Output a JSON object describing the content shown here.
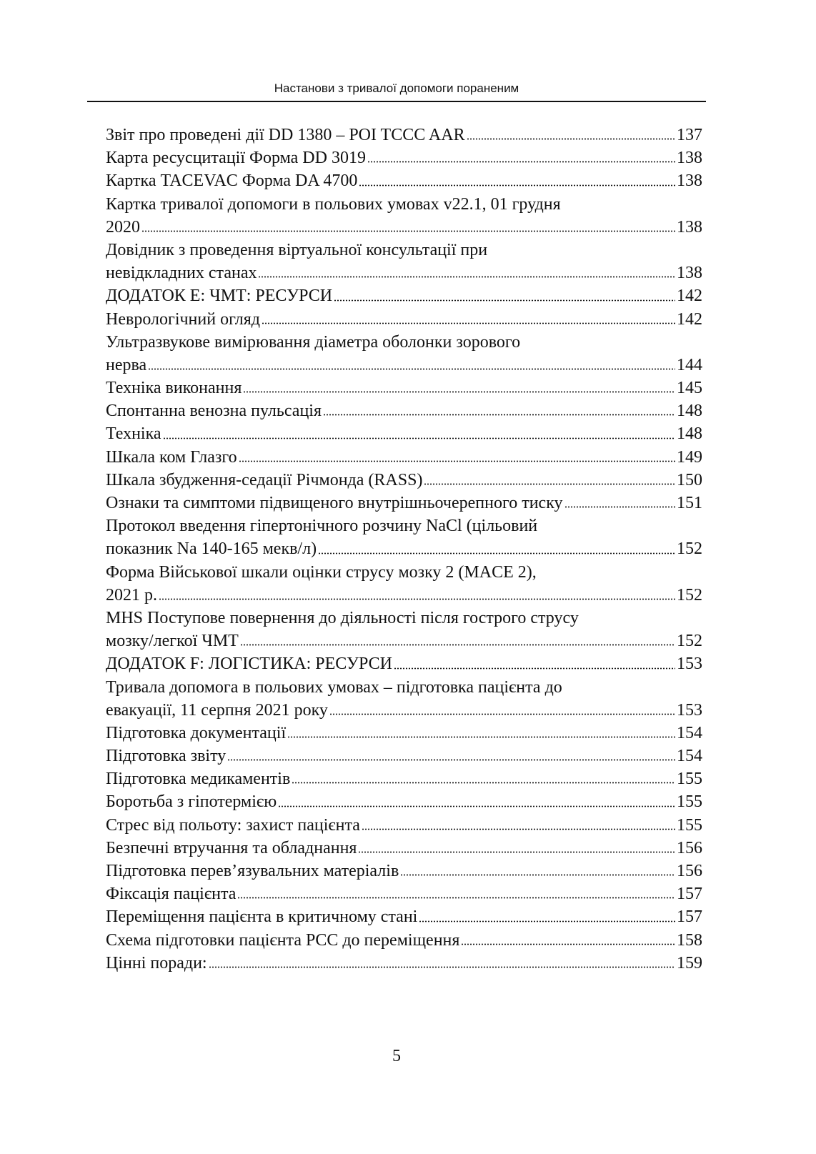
{
  "header": {
    "title": "Настанови з тривалої допомоги пораненим"
  },
  "toc": [
    {
      "lines": [
        "Звіт про проведені дії DD 1380 – POI TCCC AAR"
      ],
      "page": 137
    },
    {
      "lines": [
        "Карта ресусцитації Форма DD 3019"
      ],
      "page": 138
    },
    {
      "lines": [
        "Картка TACEVAC Форма DA 4700"
      ],
      "page": 138
    },
    {
      "lines": [
        "Картка тривалої допомоги в польових умовах v22.1, 01 грудня",
        "2020"
      ],
      "page": 138
    },
    {
      "lines": [
        "Довідник з проведення віртуальної консультації при",
        "невідкладних станах"
      ],
      "page": 138
    },
    {
      "lines": [
        "ДОДАТОК E:  ЧМТ: РЕСУРСИ"
      ],
      "page": 142
    },
    {
      "lines": [
        "Неврологічний огляд"
      ],
      "page": 142
    },
    {
      "lines": [
        "Ультразвукове вимірювання діаметра оболонки зорового",
        "нерва"
      ],
      "page": 144
    },
    {
      "lines": [
        "Техніка виконання"
      ],
      "page": 145
    },
    {
      "lines": [
        "Спонтанна венозна пульсація"
      ],
      "page": 148
    },
    {
      "lines": [
        "Техніка"
      ],
      "page": 148
    },
    {
      "lines": [
        "Шкала ком Глазго"
      ],
      "page": 149
    },
    {
      "lines": [
        "Шкала збудження-седації Річмонда (RASS)"
      ],
      "page": 150
    },
    {
      "lines": [
        "Ознаки та симптоми підвищеного внутрішньочерепного тиску"
      ],
      "page": 151
    },
    {
      "lines": [
        "Протокол введення гіпертонічного розчину NaCl (цільовий",
        "показник Na 140-165 мекв/л)"
      ],
      "page": 152
    },
    {
      "lines": [
        "Форма Військової шкали оцінки струсу мозку 2 (MACE 2),",
        "2021 р."
      ],
      "page": 152
    },
    {
      "lines": [
        "MHS Поступове повернення до діяльності після гострого струсу",
        "мозку/легкої ЧМТ"
      ],
      "page": 152
    },
    {
      "lines": [
        "ДОДАТОК F:  ЛОГІСТИКА: РЕСУРСИ"
      ],
      "page": 153
    },
    {
      "lines": [
        "Тривала допомога в польових умовах – підготовка пацієнта до",
        "евакуації, 11 серпня 2021 року"
      ],
      "page": 153
    },
    {
      "lines": [
        "Підготовка документації"
      ],
      "page": 154
    },
    {
      "lines": [
        "Підготовка звіту"
      ],
      "page": 154
    },
    {
      "lines": [
        "Підготовка медикаментів"
      ],
      "page": 155
    },
    {
      "lines": [
        "Боротьба з гіпотермією"
      ],
      "page": 155
    },
    {
      "lines": [
        "Стрес від польоту: захист пацієнта"
      ],
      "page": 155
    },
    {
      "lines": [
        "Безпечні втручання та обладнання"
      ],
      "page": 156
    },
    {
      "lines": [
        "Підготовка перев’язувальних матеріалів"
      ],
      "page": 156
    },
    {
      "lines": [
        "Фіксація пацієнта"
      ],
      "page": 157
    },
    {
      "lines": [
        "Переміщення пацієнта в критичному стані"
      ],
      "page": 157
    },
    {
      "lines": [
        "Схема підготовки пацієнта PCC до переміщення"
      ],
      "page": 158
    },
    {
      "lines": [
        "Цінні поради:"
      ],
      "page": 159
    }
  ],
  "footer": {
    "page_number": 5
  }
}
